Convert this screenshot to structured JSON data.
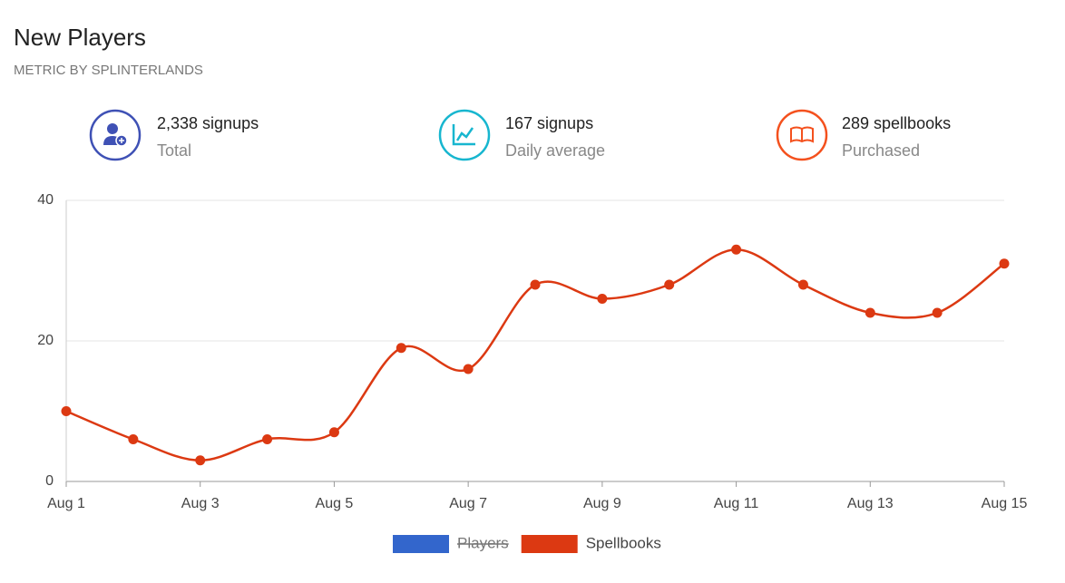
{
  "chart_data": {
    "type": "line",
    "title": "New Players",
    "subtitle": "METRIC BY SPLINTERLANDS",
    "stats": [
      {
        "value": "2,338 signups",
        "label": "Total"
      },
      {
        "value": "167 signups",
        "label": "Daily average"
      },
      {
        "value": "289 spellbooks",
        "label": "Purchased"
      }
    ],
    "categories": [
      "Aug 1",
      null,
      "Aug 3",
      null,
      "Aug 5",
      null,
      "Aug 7",
      null,
      "Aug 9",
      null,
      "Aug 11",
      null,
      "Aug 13",
      null,
      "Aug 15"
    ],
    "series": [
      {
        "name": "Players",
        "color": "#3366cc",
        "hidden": true,
        "values": [
          null,
          null,
          null,
          null,
          null,
          null,
          null,
          null,
          null,
          null,
          null,
          null,
          null,
          null,
          null
        ]
      },
      {
        "name": "Spellbooks",
        "color": "#dc3912",
        "values": [
          10,
          6,
          3,
          6,
          7,
          19,
          16,
          28,
          26,
          28,
          33,
          28,
          24,
          24,
          31
        ]
      }
    ],
    "ylim": [
      0,
      40
    ],
    "yticks": [
      0,
      20,
      40
    ],
    "grid": true,
    "legend": "bottom"
  }
}
